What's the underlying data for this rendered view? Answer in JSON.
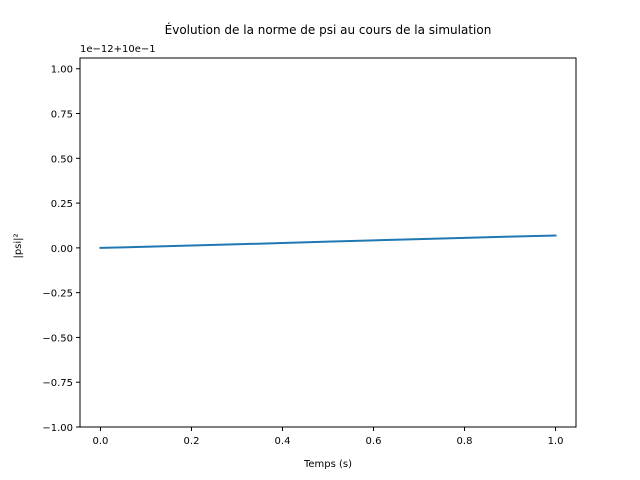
{
  "chart_data": {
    "type": "line",
    "title": "Évolution de la norme de psi au cours de la simulation",
    "xlabel": "Temps (s)",
    "ylabel": "|psi|²",
    "y_offset_label": "1e−12+10e−1",
    "xlim": [
      -0.045,
      1.045
    ],
    "ylim": [
      -1.0,
      1.06
    ],
    "x_ticks": [
      0.0,
      0.2,
      0.4,
      0.6,
      0.8,
      1.0
    ],
    "x_tick_labels": [
      "0.0",
      "0.2",
      "0.4",
      "0.6",
      "0.8",
      "1.0"
    ],
    "y_ticks": [
      -1.0,
      -0.75,
      -0.5,
      -0.25,
      0.0,
      0.25,
      0.5,
      0.75,
      1.0
    ],
    "y_tick_labels": [
      "−1.00",
      "−0.75",
      "−0.50",
      "−0.25",
      "0.00",
      "0.25",
      "0.50",
      "0.75",
      "1.00"
    ],
    "grid": false,
    "series": [
      {
        "color": "#1f77b4",
        "x": [
          0.0,
          0.1,
          0.2,
          0.3,
          0.4,
          0.5,
          0.6,
          0.7,
          0.8,
          0.9,
          1.0
        ],
        "y": [
          0.0,
          0.006,
          0.013,
          0.02,
          0.027,
          0.035,
          0.042,
          0.049,
          0.056,
          0.063,
          0.069
        ]
      }
    ]
  }
}
